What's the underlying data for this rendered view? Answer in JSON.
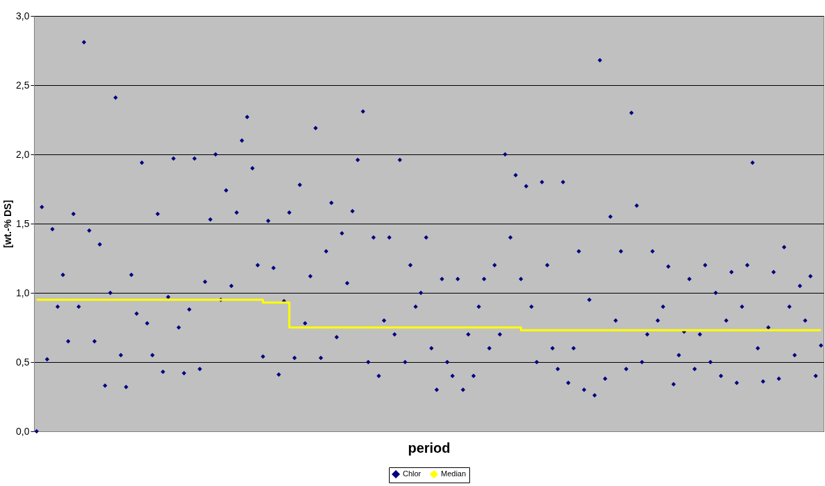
{
  "chart_data": {
    "type": "scatter",
    "xlabel": "period",
    "ylabel": "[wt.-% DS]",
    "categories": [
      null,
      null,
      null,
      null,
      null,
      null,
      null,
      null,
      null,
      null,
      null,
      null,
      null,
      null,
      null,
      null,
      null,
      null,
      null,
      null,
      null,
      null,
      null,
      null,
      null,
      null,
      null,
      null,
      null,
      null,
      null,
      null,
      null,
      null,
      null,
      null,
      null,
      null,
      null,
      null,
      null,
      null,
      null,
      null,
      null,
      null,
      null,
      null,
      null,
      null,
      null,
      null,
      null,
      null,
      null,
      null,
      null,
      null,
      null,
      null,
      null,
      null,
      null,
      null,
      null,
      null,
      null,
      null,
      null,
      null,
      null,
      null,
      null,
      null,
      null,
      null,
      null,
      null,
      null,
      null,
      null,
      null,
      null,
      null,
      null,
      null,
      null,
      null,
      null,
      null,
      null,
      null,
      null,
      null,
      null,
      null,
      null,
      null,
      null,
      null,
      null,
      null,
      null,
      null,
      null,
      null,
      null,
      null,
      null,
      null,
      null,
      null,
      null,
      null,
      null,
      null,
      null,
      null,
      null,
      null,
      null,
      null,
      null,
      null,
      null,
      null,
      null,
      null,
      null,
      null,
      null,
      null,
      null,
      null,
      null,
      null,
      null,
      null,
      null,
      null,
      null,
      null,
      null,
      null,
      null,
      null,
      null,
      null,
      null,
      null
    ],
    "series": [
      {
        "name": "Chlor",
        "color": "#000080",
        "marker": "diamond",
        "values": [
          0.0,
          1.62,
          0.52,
          1.46,
          0.9,
          1.13,
          0.65,
          1.57,
          0.9,
          2.81,
          1.45,
          0.65,
          1.35,
          0.33,
          1.0,
          2.41,
          0.55,
          0.32,
          1.13,
          0.85,
          1.94,
          0.78,
          0.55,
          1.57,
          0.43,
          0.97,
          1.97,
          0.75,
          0.42,
          0.88,
          1.97,
          0.45,
          1.08,
          1.53,
          2.0,
          0.95,
          1.74,
          1.05,
          1.58,
          2.1,
          2.27,
          1.9,
          1.2,
          0.54,
          1.52,
          1.18,
          0.41,
          0.94,
          1.58,
          0.53,
          1.78,
          0.78,
          1.12,
          2.19,
          0.53,
          1.3,
          1.65,
          0.68,
          1.43,
          1.07,
          1.59,
          1.96,
          2.31,
          0.5,
          1.4,
          0.4,
          0.8,
          1.4,
          0.7,
          1.96,
          0.5,
          1.2,
          0.9,
          1.0,
          1.4,
          0.6,
          0.3,
          1.1,
          0.5,
          0.4,
          1.1,
          0.3,
          0.7,
          0.4,
          0.9,
          1.1,
          0.6,
          1.2,
          0.7,
          2.0,
          1.4,
          1.85,
          1.1,
          1.77,
          0.9,
          0.5,
          1.8,
          1.2,
          0.6,
          0.45,
          1.8,
          0.35,
          0.6,
          1.3,
          0.3,
          0.95,
          0.26,
          2.68,
          0.38,
          1.55,
          0.8,
          1.3,
          0.45,
          2.3,
          1.63,
          0.5,
          0.7,
          1.3,
          0.8,
          0.9,
          1.19,
          0.34,
          0.55,
          0.72,
          1.1,
          0.45,
          0.7,
          1.2,
          0.5,
          1.0,
          0.4,
          0.8,
          1.15,
          0.35,
          0.9,
          1.2,
          1.94,
          0.6,
          0.36,
          0.75,
          1.15,
          0.38,
          1.33,
          0.9,
          0.55,
          1.05,
          0.8,
          1.12,
          0.4,
          0.62
        ]
      },
      {
        "name": "Median",
        "type": "step",
        "color": "#ffff00",
        "values": [
          0.95,
          0.95,
          0.95,
          0.95,
          0.95,
          0.95,
          0.95,
          0.95,
          0.95,
          0.95,
          0.95,
          0.95,
          0.95,
          0.95,
          0.95,
          0.95,
          0.95,
          0.95,
          0.95,
          0.95,
          0.95,
          0.95,
          0.95,
          0.95,
          0.95,
          0.95,
          0.95,
          0.95,
          0.95,
          0.95,
          0.95,
          0.95,
          0.95,
          0.95,
          0.95,
          0.95,
          0.95,
          0.95,
          0.95,
          0.95,
          0.95,
          0.95,
          0.95,
          0.93,
          0.93,
          0.93,
          0.93,
          0.93,
          0.75,
          0.75,
          0.75,
          0.75,
          0.75,
          0.75,
          0.75,
          0.75,
          0.75,
          0.75,
          0.75,
          0.75,
          0.75,
          0.75,
          0.75,
          0.75,
          0.75,
          0.75,
          0.75,
          0.75,
          0.75,
          0.75,
          0.75,
          0.75,
          0.75,
          0.75,
          0.75,
          0.75,
          0.75,
          0.75,
          0.75,
          0.75,
          0.75,
          0.75,
          0.75,
          0.75,
          0.75,
          0.75,
          0.75,
          0.75,
          0.75,
          0.75,
          0.75,
          0.75,
          0.73,
          0.73,
          0.73,
          0.73,
          0.73,
          0.73,
          0.73,
          0.73,
          0.73,
          0.73,
          0.73,
          0.73,
          0.73,
          0.73,
          0.73,
          0.73,
          0.73,
          0.73,
          0.73,
          0.73,
          0.73,
          0.73,
          0.73,
          0.73,
          0.73,
          0.73,
          0.73,
          0.73,
          0.73,
          0.73,
          0.73,
          0.73,
          0.73,
          0.73,
          0.73,
          0.73,
          0.73,
          0.73,
          0.73,
          0.73,
          0.73,
          0.73,
          0.73,
          0.73,
          0.73,
          0.73,
          0.73,
          0.73,
          0.73,
          0.73,
          0.73,
          0.73,
          0.73,
          0.73,
          0.73,
          0.73,
          0.73,
          0.73
        ]
      }
    ],
    "ylim": [
      0,
      3
    ],
    "yticks": [
      {
        "value": 0,
        "label": "0,0"
      },
      {
        "value": 0.5,
        "label": "0,5"
      },
      {
        "value": 1,
        "label": "1,0"
      },
      {
        "value": 1.5,
        "label": "1,5"
      },
      {
        "value": 2,
        "label": "2,0"
      },
      {
        "value": 2.5,
        "label": "2,5"
      },
      {
        "value": 3,
        "label": "3,0"
      }
    ],
    "grid": "y",
    "legend": "bottom",
    "tick_labels": "y"
  }
}
